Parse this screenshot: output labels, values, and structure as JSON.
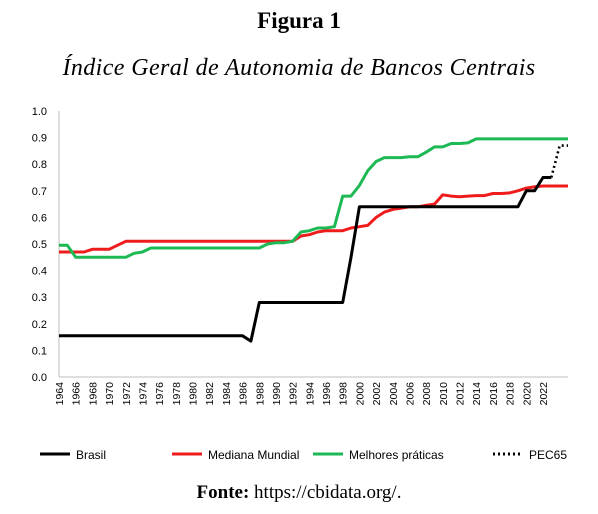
{
  "figure_label": "Figura 1",
  "source": {
    "label": "Fonte:",
    "text": "https://cbidata.org/."
  },
  "chart_data": {
    "type": "line",
    "title": "Índice Geral de Autonomia de Bancos Centrais",
    "xlabel": "",
    "ylabel": "",
    "xlim": [
      1964,
      2025
    ],
    "ylim": [
      0,
      1.0
    ],
    "yticks": [
      "0.0",
      "0.1",
      "0.2",
      "0.3",
      "0.4",
      "0.5",
      "0.6",
      "0.7",
      "0.8",
      "0.9",
      "1.0"
    ],
    "xticks": [
      "1964",
      "1966",
      "1968",
      "1970",
      "1972",
      "1974",
      "1976",
      "1978",
      "1980",
      "1982",
      "1984",
      "1986",
      "1988",
      "1990",
      "1992",
      "1994",
      "1996",
      "1998",
      "2000",
      "2002",
      "2004",
      "2006",
      "2008",
      "2010",
      "2012",
      "2014",
      "2016",
      "2018",
      "2020",
      "2022"
    ],
    "grid": false,
    "legend_position": "bottom",
    "series": [
      {
        "name": "Brasil",
        "color": "#000000",
        "style": "solid",
        "points": [
          [
            1964,
            0.155
          ],
          [
            1986,
            0.155
          ],
          [
            1987,
            0.135
          ],
          [
            1988,
            0.28
          ],
          [
            1998,
            0.28
          ],
          [
            1999,
            0.45
          ],
          [
            2000,
            0.64
          ],
          [
            2019,
            0.64
          ],
          [
            2020,
            0.7
          ],
          [
            2021,
            0.7
          ],
          [
            2022,
            0.75
          ],
          [
            2023,
            0.75
          ]
        ]
      },
      {
        "name": "Mediana Mundial",
        "color": "#ee1c1c",
        "style": "solid",
        "points": [
          [
            1964,
            0.47
          ],
          [
            1967,
            0.47
          ],
          [
            1968,
            0.48
          ],
          [
            1970,
            0.48
          ],
          [
            1971,
            0.495
          ],
          [
            1972,
            0.51
          ],
          [
            1991,
            0.51
          ],
          [
            1992,
            0.51
          ],
          [
            1993,
            0.53
          ],
          [
            1994,
            0.535
          ],
          [
            1995,
            0.545
          ],
          [
            1996,
            0.55
          ],
          [
            1997,
            0.55
          ],
          [
            1998,
            0.55
          ],
          [
            1999,
            0.56
          ],
          [
            2000,
            0.565
          ],
          [
            2001,
            0.57
          ],
          [
            2002,
            0.6
          ],
          [
            2003,
            0.62
          ],
          [
            2004,
            0.63
          ],
          [
            2005,
            0.635
          ],
          [
            2006,
            0.64
          ],
          [
            2007,
            0.64
          ],
          [
            2008,
            0.645
          ],
          [
            2009,
            0.65
          ],
          [
            2010,
            0.685
          ],
          [
            2011,
            0.68
          ],
          [
            2012,
            0.678
          ],
          [
            2013,
            0.68
          ],
          [
            2014,
            0.682
          ],
          [
            2015,
            0.682
          ],
          [
            2016,
            0.69
          ],
          [
            2017,
            0.69
          ],
          [
            2018,
            0.692
          ],
          [
            2019,
            0.7
          ],
          [
            2020,
            0.71
          ],
          [
            2021,
            0.715
          ],
          [
            2022,
            0.718
          ],
          [
            2025,
            0.718
          ]
        ]
      },
      {
        "name": "Melhores práticas",
        "color": "#1db954",
        "style": "solid",
        "points": [
          [
            1964,
            0.495
          ],
          [
            1965,
            0.495
          ],
          [
            1966,
            0.45
          ],
          [
            1972,
            0.45
          ],
          [
            1973,
            0.465
          ],
          [
            1974,
            0.47
          ],
          [
            1975,
            0.485
          ],
          [
            1988,
            0.485
          ],
          [
            1989,
            0.5
          ],
          [
            1990,
            0.505
          ],
          [
            1991,
            0.505
          ],
          [
            1992,
            0.51
          ],
          [
            1993,
            0.545
          ],
          [
            1994,
            0.55
          ],
          [
            1995,
            0.56
          ],
          [
            1996,
            0.56
          ],
          [
            1997,
            0.565
          ],
          [
            1998,
            0.68
          ],
          [
            1999,
            0.68
          ],
          [
            2000,
            0.72
          ],
          [
            2001,
            0.775
          ],
          [
            2002,
            0.81
          ],
          [
            2003,
            0.825
          ],
          [
            2004,
            0.825
          ],
          [
            2005,
            0.825
          ],
          [
            2006,
            0.828
          ],
          [
            2007,
            0.828
          ],
          [
            2008,
            0.845
          ],
          [
            2009,
            0.865
          ],
          [
            2010,
            0.865
          ],
          [
            2011,
            0.878
          ],
          [
            2012,
            0.878
          ],
          [
            2013,
            0.88
          ],
          [
            2014,
            0.895
          ],
          [
            2025,
            0.895
          ]
        ]
      },
      {
        "name": "PEC65",
        "color": "#000000",
        "style": "dotted",
        "points": [
          [
            2023,
            0.75
          ],
          [
            2024,
            0.87
          ],
          [
            2025,
            0.87
          ]
        ]
      }
    ]
  }
}
